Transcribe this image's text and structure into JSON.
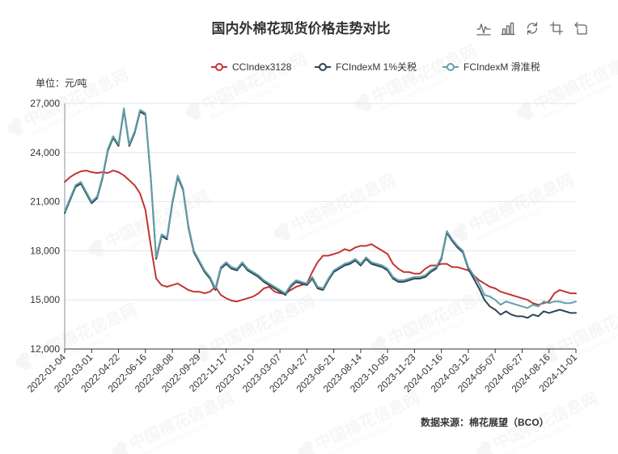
{
  "source": "数据来源：棉花展望（BCO）",
  "watermark": {
    "name": "中国棉花信息网",
    "url": "www.cottonchina.org.cn"
  },
  "toolbox": {
    "icons": [
      "line-chart-icon",
      "bar-chart-icon",
      "restore-icon",
      "data-zoom-icon",
      "zoom-back-icon"
    ],
    "icon_color": "#666666"
  },
  "chart_data": {
    "type": "line",
    "title": "国内外棉花现货价格走势对比",
    "ylabel": "单位：元/吨",
    "xlabel": "",
    "ylim": [
      12000,
      27000
    ],
    "y_ticks": [
      12000,
      15000,
      18000,
      21000,
      24000,
      27000
    ],
    "y_tick_labels": [
      "12,000",
      "15,000",
      "18,000",
      "21,000",
      "24,000",
      "27,000"
    ],
    "grid": true,
    "legend_position": "top",
    "x_ticks": [
      "2022-01-04",
      "2022-03-01",
      "2022-04-22",
      "2022-06-16",
      "2022-08-08",
      "2022-09-29",
      "2022-11-17",
      "2023-01-10",
      "2023-03-07",
      "2023-04-27",
      "2023-06-21",
      "2023-08-14",
      "2023-10-05",
      "2023-11-23",
      "2024-01-16",
      "2024-03-12",
      "2024-05-07",
      "2024-06-27",
      "2024-08-16",
      "2024-11-01"
    ],
    "x": [
      "2022-01-04",
      "2022-01-14",
      "2022-01-25",
      "2022-02-10",
      "2022-02-18",
      "2022-03-01",
      "2022-03-11",
      "2022-03-21",
      "2022-03-31",
      "2022-04-12",
      "2022-04-22",
      "2022-05-05",
      "2022-05-16",
      "2022-05-26",
      "2022-06-06",
      "2022-06-16",
      "2022-06-27",
      "2022-07-07",
      "2022-07-18",
      "2022-07-28",
      "2022-08-08",
      "2022-08-18",
      "2022-08-29",
      "2022-09-08",
      "2022-09-19",
      "2022-09-29",
      "2022-10-13",
      "2022-10-21",
      "2022-10-31",
      "2022-11-08",
      "2022-11-17",
      "2022-11-28",
      "2022-12-08",
      "2022-12-19",
      "2022-12-29",
      "2023-01-10",
      "2023-01-20",
      "2023-02-06",
      "2023-02-15",
      "2023-02-24",
      "2023-03-07",
      "2023-03-17",
      "2023-03-27",
      "2023-04-06",
      "2023-04-17",
      "2023-04-27",
      "2023-05-10",
      "2023-05-19",
      "2023-05-31",
      "2023-06-09",
      "2023-06-21",
      "2023-07-03",
      "2023-07-13",
      "2023-07-24",
      "2023-08-03",
      "2023-08-14",
      "2023-08-24",
      "2023-09-04",
      "2023-09-14",
      "2023-09-25",
      "2023-10-05",
      "2023-10-16",
      "2023-10-25",
      "2023-11-03",
      "2023-11-13",
      "2023-11-23",
      "2023-12-04",
      "2023-12-14",
      "2023-12-25",
      "2024-01-05",
      "2024-01-16",
      "2024-01-26",
      "2024-02-06",
      "2024-02-23",
      "2024-03-04",
      "2024-03-12",
      "2024-03-22",
      "2024-04-02",
      "2024-04-15",
      "2024-04-25",
      "2024-05-07",
      "2024-05-17",
      "2024-05-28",
      "2024-06-06",
      "2024-06-18",
      "2024-06-27",
      "2024-07-09",
      "2024-07-19",
      "2024-07-30",
      "2024-08-07",
      "2024-08-16",
      "2024-08-30",
      "2024-09-13",
      "2024-09-27",
      "2024-10-17",
      "2024-11-01"
    ],
    "series": [
      {
        "name": "CCIndex3128",
        "color": "#c23531",
        "values": [
          22200,
          22500,
          22700,
          22850,
          22900,
          22800,
          22750,
          22800,
          22750,
          22900,
          22800,
          22600,
          22300,
          22000,
          21500,
          20500,
          18300,
          16300,
          15900,
          15800,
          15900,
          16000,
          15800,
          15600,
          15500,
          15500,
          15400,
          15500,
          15800,
          15300,
          15100,
          14950,
          14900,
          15000,
          15100,
          15200,
          15400,
          15700,
          15800,
          15500,
          15400,
          15400,
          15600,
          15800,
          15900,
          16000,
          16700,
          17300,
          17700,
          17700,
          17800,
          17900,
          18100,
          18000,
          18200,
          18300,
          18300,
          18400,
          18200,
          18000,
          17800,
          17200,
          16900,
          16700,
          16700,
          16600,
          16600,
          16900,
          17100,
          17100,
          17200,
          17200,
          17000,
          17000,
          16900,
          16800,
          16500,
          16200,
          16000,
          15800,
          15700,
          15500,
          15400,
          15300,
          15200,
          15100,
          15000,
          14800,
          14700,
          14800,
          14900,
          15400,
          15600,
          15500,
          15400,
          15400
        ]
      },
      {
        "name": "FCIndexM 1%关税",
        "color": "#2f4554",
        "values": [
          20300,
          21100,
          21900,
          22100,
          21500,
          20900,
          21200,
          22400,
          24100,
          24900,
          24400,
          26600,
          24400,
          25200,
          26500,
          26300,
          22400,
          17500,
          18900,
          18700,
          20900,
          22500,
          21700,
          19400,
          17900,
          17300,
          16700,
          16300,
          15600,
          16900,
          17200,
          16900,
          16800,
          17200,
          16800,
          16600,
          16400,
          16100,
          15900,
          15700,
          15500,
          15300,
          15800,
          16100,
          16000,
          15900,
          16300,
          15700,
          15600,
          16200,
          16700,
          16900,
          17100,
          17200,
          17400,
          17100,
          17500,
          17200,
          17100,
          17000,
          16800,
          16300,
          16100,
          16100,
          16200,
          16300,
          16300,
          16400,
          16700,
          16900,
          17500,
          19100,
          18600,
          18200,
          17900,
          16900,
          16300,
          15700,
          15000,
          14600,
          14400,
          14100,
          14300,
          14100,
          14000,
          14000,
          13900,
          14100,
          14000,
          14300,
          14200,
          14300,
          14400,
          14300,
          14200,
          14200
        ]
      },
      {
        "name": "FCIndexM 滑准税",
        "color": "#61a0a8",
        "values": [
          20400,
          21200,
          22000,
          22200,
          21600,
          21000,
          21300,
          22500,
          24200,
          25000,
          24500,
          26700,
          24500,
          25300,
          26600,
          26400,
          22500,
          17600,
          19000,
          18800,
          21000,
          22600,
          21800,
          19500,
          18000,
          17400,
          16800,
          16400,
          15700,
          17000,
          17300,
          17000,
          16900,
          17300,
          16900,
          16700,
          16500,
          16200,
          16000,
          15800,
          15600,
          15400,
          15900,
          16200,
          16100,
          16000,
          16400,
          15800,
          15700,
          16300,
          16800,
          17000,
          17200,
          17300,
          17500,
          17200,
          17600,
          17300,
          17200,
          17100,
          16900,
          16400,
          16200,
          16200,
          16300,
          16400,
          16400,
          16500,
          16800,
          17000,
          17600,
          19200,
          18700,
          18300,
          18000,
          17000,
          16500,
          16000,
          15300,
          15200,
          15000,
          14700,
          14900,
          14800,
          14700,
          14600,
          14500,
          14700,
          14600,
          14900,
          14800,
          14900,
          14900,
          14800,
          14800,
          14900
        ]
      }
    ]
  }
}
